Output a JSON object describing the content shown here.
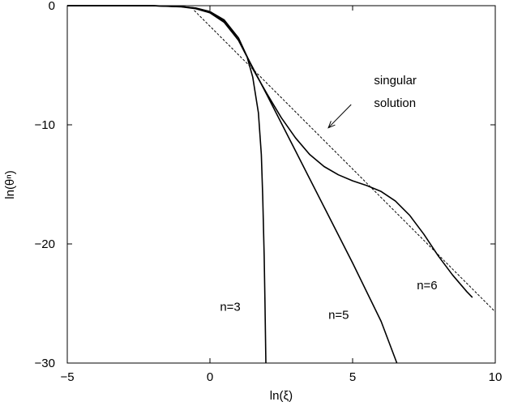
{
  "chart_data": {
    "type": "line",
    "xlabel": "ln(ξ)",
    "ylabel": "ln(θⁿ)",
    "xlim": [
      -5,
      10
    ],
    "ylim": [
      -30,
      0
    ],
    "xticks": [
      -5,
      0,
      5,
      10
    ],
    "yticks": [
      0,
      -10,
      -20,
      -30
    ],
    "xtick_labels": [
      "−5",
      "0",
      "5",
      "10"
    ],
    "ytick_labels": [
      "0",
      "−10",
      "−20",
      "−30"
    ],
    "grid": false,
    "series": [
      {
        "name": "n=3",
        "style": "solid",
        "x": [
          -5,
          -3,
          -2,
          -1,
          -0.5,
          0,
          0.5,
          1.0,
          1.3,
          1.5,
          1.7,
          1.8,
          1.85,
          1.9,
          1.93,
          1.96
        ],
        "y": [
          0,
          0,
          -0.01,
          -0.1,
          -0.25,
          -0.6,
          -1.4,
          -2.9,
          -4.3,
          -6.0,
          -9.0,
          -12.5,
          -16.0,
          -21.0,
          -25.0,
          -30
        ]
      },
      {
        "name": "n=5",
        "style": "solid",
        "x": [
          -5,
          -3,
          -2,
          -1,
          -0.5,
          0,
          0.5,
          1.0,
          1.5,
          2.0,
          3.0,
          4.0,
          5.0,
          6.0,
          6.55
        ],
        "y": [
          0,
          0,
          -0.01,
          -0.08,
          -0.2,
          -0.5,
          -1.3,
          -2.9,
          -5.2,
          -7.5,
          -12.2,
          -16.9,
          -21.6,
          -26.5,
          -30
        ]
      },
      {
        "name": "n=6",
        "style": "solid",
        "x": [
          -5,
          -3,
          -2,
          -1,
          -0.5,
          0,
          0.5,
          1.0,
          1.5,
          2.0,
          2.5,
          3.0,
          3.5,
          4.0,
          4.5,
          5.0,
          5.5,
          6.0,
          6.5,
          7.0,
          7.5,
          8.0,
          8.5,
          9.0,
          9.2
        ],
        "y": [
          0,
          0,
          -0.01,
          -0.08,
          -0.2,
          -0.5,
          -1.2,
          -2.7,
          -5.3,
          -7.4,
          -9.4,
          -11.1,
          -12.5,
          -13.5,
          -14.2,
          -14.7,
          -15.1,
          -15.6,
          -16.4,
          -17.6,
          -19.2,
          -21.0,
          -22.6,
          -24.0,
          -24.5
        ]
      },
      {
        "name": "singular solution",
        "style": "dashed",
        "x": [
          -0.55,
          10
        ],
        "y": [
          -0.4,
          -25.7
        ]
      }
    ],
    "annotations": [
      {
        "text": "n=3",
        "x": 0.35,
        "y": -25.6
      },
      {
        "text": "n=5",
        "x": 4.15,
        "y": -26.3
      },
      {
        "text": "n=6",
        "x": 7.25,
        "y": -23.8
      },
      {
        "text": "singular",
        "x": 5.75,
        "y": -6.6
      },
      {
        "text": "solution",
        "x": 5.75,
        "y": -8.5
      }
    ],
    "arrow": {
      "from": [
        4.95,
        -8.3
      ],
      "to": [
        4.15,
        -10.25
      ]
    }
  }
}
